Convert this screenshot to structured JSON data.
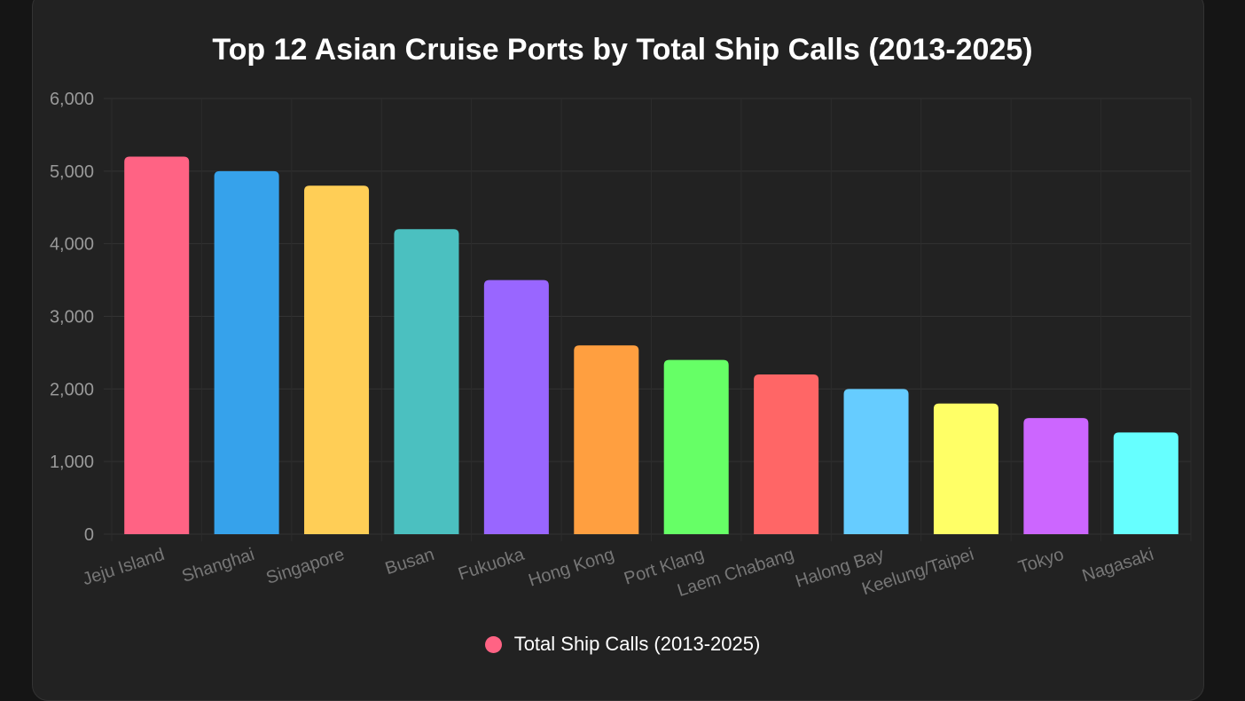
{
  "chart_data": {
    "type": "bar",
    "title": "Top 12 Asian Cruise Ports by Total Ship Calls (2013-2025)",
    "categories": [
      "Jeju Island",
      "Shanghai",
      "Singapore",
      "Busan",
      "Fukuoka",
      "Hong Kong",
      "Port Klang",
      "Laem Chabang",
      "Halong Bay",
      "Keelung/Taipei",
      "Tokyo",
      "Nagasaki"
    ],
    "series": [
      {
        "name": "Total Ship Calls (2013-2025)",
        "values": [
          5200,
          5000,
          4800,
          4200,
          3500,
          2600,
          2400,
          2200,
          2000,
          1800,
          1600,
          1400
        ]
      }
    ],
    "colors": [
      "#ff6384",
      "#36a2eb",
      "#ffce56",
      "#4bc0c0",
      "#9966ff",
      "#ff9f40",
      "#66ff66",
      "#ff6666",
      "#66ccff",
      "#ffff66",
      "#cc66ff",
      "#66ffff"
    ],
    "yticks": [
      "0",
      "1,000",
      "2,000",
      "3,000",
      "4,000",
      "5,000",
      "6,000"
    ],
    "ylim": [
      0,
      6000
    ],
    "grid": true,
    "legend_position": "bottom",
    "legend_color": "#ff6384"
  }
}
